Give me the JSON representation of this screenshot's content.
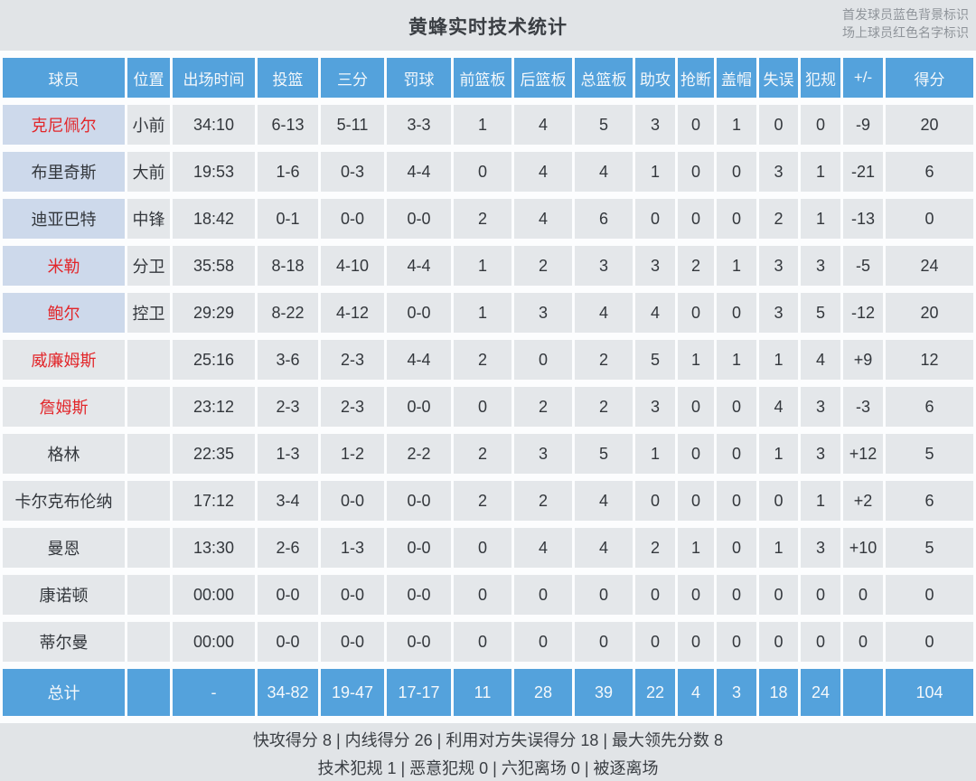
{
  "title": "黄蜂实时技术统计",
  "legend": {
    "starter_note": "首发球员蓝色背景标识",
    "oncourt_note": "场上球员红色名字标识"
  },
  "colors": {
    "header_blue": "#54a2dc",
    "starter_cell_bg": "#cdd9eb",
    "cell_bg": "#e4e7ea",
    "oncourt_name_red": "#e2262a",
    "page_bg": "#e1e4e7"
  },
  "table": {
    "columns": [
      "球员",
      "位置",
      "出场时间",
      "投篮",
      "三分",
      "罚球",
      "前篮板",
      "后篮板",
      "总篮板",
      "助攻",
      "抢断",
      "盖帽",
      "失误",
      "犯规",
      "+/-",
      "得分"
    ],
    "rows": [
      {
        "name": "克尼佩尔",
        "starter": true,
        "on_court": true,
        "cells": [
          "小前",
          "34:10",
          "6-13",
          "5-11",
          "3-3",
          "1",
          "4",
          "5",
          "3",
          "0",
          "1",
          "0",
          "0",
          "-9",
          "20"
        ]
      },
      {
        "name": "布里奇斯",
        "starter": true,
        "on_court": false,
        "cells": [
          "大前",
          "19:53",
          "1-6",
          "0-3",
          "4-4",
          "0",
          "4",
          "4",
          "1",
          "0",
          "0",
          "3",
          "1",
          "-21",
          "6"
        ]
      },
      {
        "name": "迪亚巴特",
        "starter": true,
        "on_court": false,
        "cells": [
          "中锋",
          "18:42",
          "0-1",
          "0-0",
          "0-0",
          "2",
          "4",
          "6",
          "0",
          "0",
          "0",
          "2",
          "1",
          "-13",
          "0"
        ]
      },
      {
        "name": "米勒",
        "starter": true,
        "on_court": true,
        "cells": [
          "分卫",
          "35:58",
          "8-18",
          "4-10",
          "4-4",
          "1",
          "2",
          "3",
          "3",
          "2",
          "1",
          "3",
          "3",
          "-5",
          "24"
        ]
      },
      {
        "name": "鲍尔",
        "starter": true,
        "on_court": true,
        "cells": [
          "控卫",
          "29:29",
          "8-22",
          "4-12",
          "0-0",
          "1",
          "3",
          "4",
          "4",
          "0",
          "0",
          "3",
          "5",
          "-12",
          "20"
        ]
      },
      {
        "name": "威廉姆斯",
        "starter": false,
        "on_court": true,
        "cells": [
          "",
          "25:16",
          "3-6",
          "2-3",
          "4-4",
          "2",
          "0",
          "2",
          "5",
          "1",
          "1",
          "1",
          "4",
          "+9",
          "12"
        ]
      },
      {
        "name": "詹姆斯",
        "starter": false,
        "on_court": true,
        "cells": [
          "",
          "23:12",
          "2-3",
          "2-3",
          "0-0",
          "0",
          "2",
          "2",
          "3",
          "0",
          "0",
          "4",
          "3",
          "-3",
          "6"
        ]
      },
      {
        "name": "格林",
        "starter": false,
        "on_court": false,
        "cells": [
          "",
          "22:35",
          "1-3",
          "1-2",
          "2-2",
          "2",
          "3",
          "5",
          "1",
          "0",
          "0",
          "1",
          "3",
          "+12",
          "5"
        ]
      },
      {
        "name": "卡尔克布伦纳",
        "starter": false,
        "on_court": false,
        "cells": [
          "",
          "17:12",
          "3-4",
          "0-0",
          "0-0",
          "2",
          "2",
          "4",
          "0",
          "0",
          "0",
          "0",
          "1",
          "+2",
          "6"
        ]
      },
      {
        "name": "曼恩",
        "starter": false,
        "on_court": false,
        "cells": [
          "",
          "13:30",
          "2-6",
          "1-3",
          "0-0",
          "0",
          "4",
          "4",
          "2",
          "1",
          "0",
          "1",
          "3",
          "+10",
          "5"
        ]
      },
      {
        "name": "康诺顿",
        "starter": false,
        "on_court": false,
        "cells": [
          "",
          "00:00",
          "0-0",
          "0-0",
          "0-0",
          "0",
          "0",
          "0",
          "0",
          "0",
          "0",
          "0",
          "0",
          "0",
          "0"
        ]
      },
      {
        "name": "蒂尔曼",
        "starter": false,
        "on_court": false,
        "cells": [
          "",
          "00:00",
          "0-0",
          "0-0",
          "0-0",
          "0",
          "0",
          "0",
          "0",
          "0",
          "0",
          "0",
          "0",
          "0",
          "0"
        ]
      }
    ],
    "totals": {
      "label": "总计",
      "cells": [
        "",
        "-",
        "34-82",
        "19-47",
        "17-17",
        "11",
        "28",
        "39",
        "22",
        "4",
        "3",
        "18",
        "24",
        "",
        "104"
      ]
    }
  },
  "footer": {
    "team_stats_line": "快攻得分 8 | 内线得分 26 | 利用对方失误得分 18 | 最大领先分数 8",
    "fouls_line": "技术犯规 1 | 恶意犯规 0 | 六犯离场 0 | 被逐离场"
  }
}
